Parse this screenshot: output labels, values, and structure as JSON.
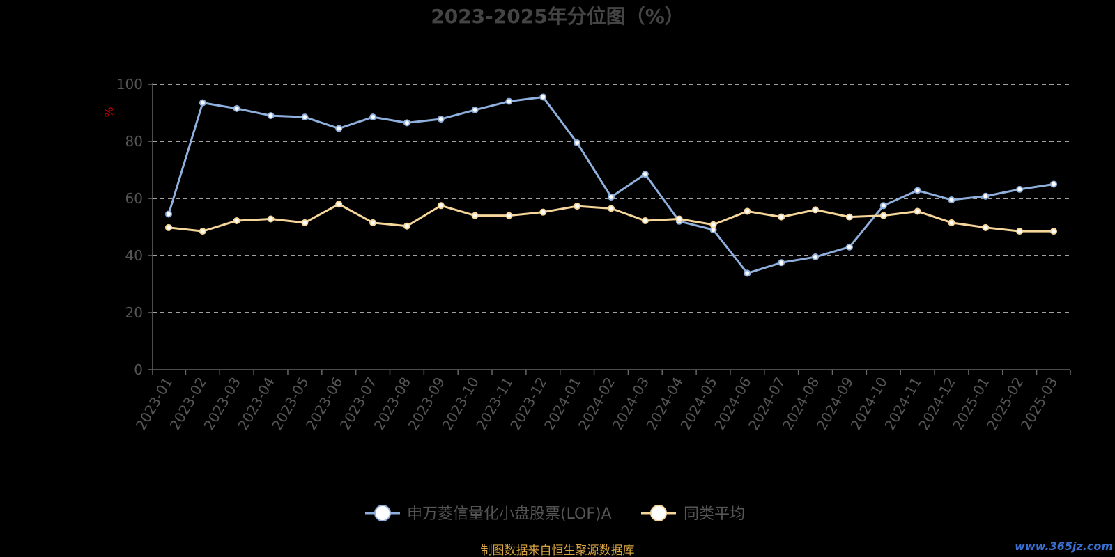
{
  "chart_data": {
    "type": "line",
    "title": "2023-2025年分位图（%）",
    "ylabel": "%",
    "ylim": [
      0,
      100
    ],
    "yticks": [
      0,
      20,
      40,
      60,
      80,
      100
    ],
    "grid": true,
    "legend_position": "bottom",
    "categories": [
      "2023-01",
      "2023-02",
      "2023-03",
      "2023-04",
      "2023-05",
      "2023-06",
      "2023-07",
      "2023-08",
      "2023-09",
      "2023-10",
      "2023-11",
      "2023-12",
      "2024-01",
      "2024-02",
      "2024-03",
      "2024-04",
      "2024-05",
      "2024-06",
      "2024-07",
      "2024-08",
      "2024-09",
      "2024-10",
      "2024-11",
      "2024-12",
      "2025-01",
      "2025-02",
      "2025-03"
    ],
    "series": [
      {
        "name": "申万菱信量化小盘股票(LOF)A",
        "color": "#8fb0dd",
        "values": [
          54.5,
          93.5,
          91.5,
          89,
          88.5,
          84.5,
          88.5,
          86.5,
          87.8,
          91,
          94,
          95.5,
          79.5,
          60.5,
          68.5,
          52,
          49,
          33.8,
          37.5,
          39.5,
          43,
          57.5,
          62.8,
          59.5,
          60.8,
          63.2,
          65
        ]
      },
      {
        "name": "同类平均",
        "color": "#f6d69a",
        "values": [
          49.8,
          48.5,
          52.2,
          52.8,
          51.5,
          58,
          51.5,
          50.3,
          57.5,
          54,
          54,
          55.2,
          57.3,
          56.5,
          52.2,
          52.8,
          50.8,
          55.5,
          53.5,
          56,
          53.5,
          54,
          55.5,
          51.5,
          49.8,
          48.5,
          48.5
        ]
      }
    ]
  },
  "footer": {
    "source": "制图数据来自恒生聚源数据库",
    "watermark": "www.365jz.com"
  }
}
